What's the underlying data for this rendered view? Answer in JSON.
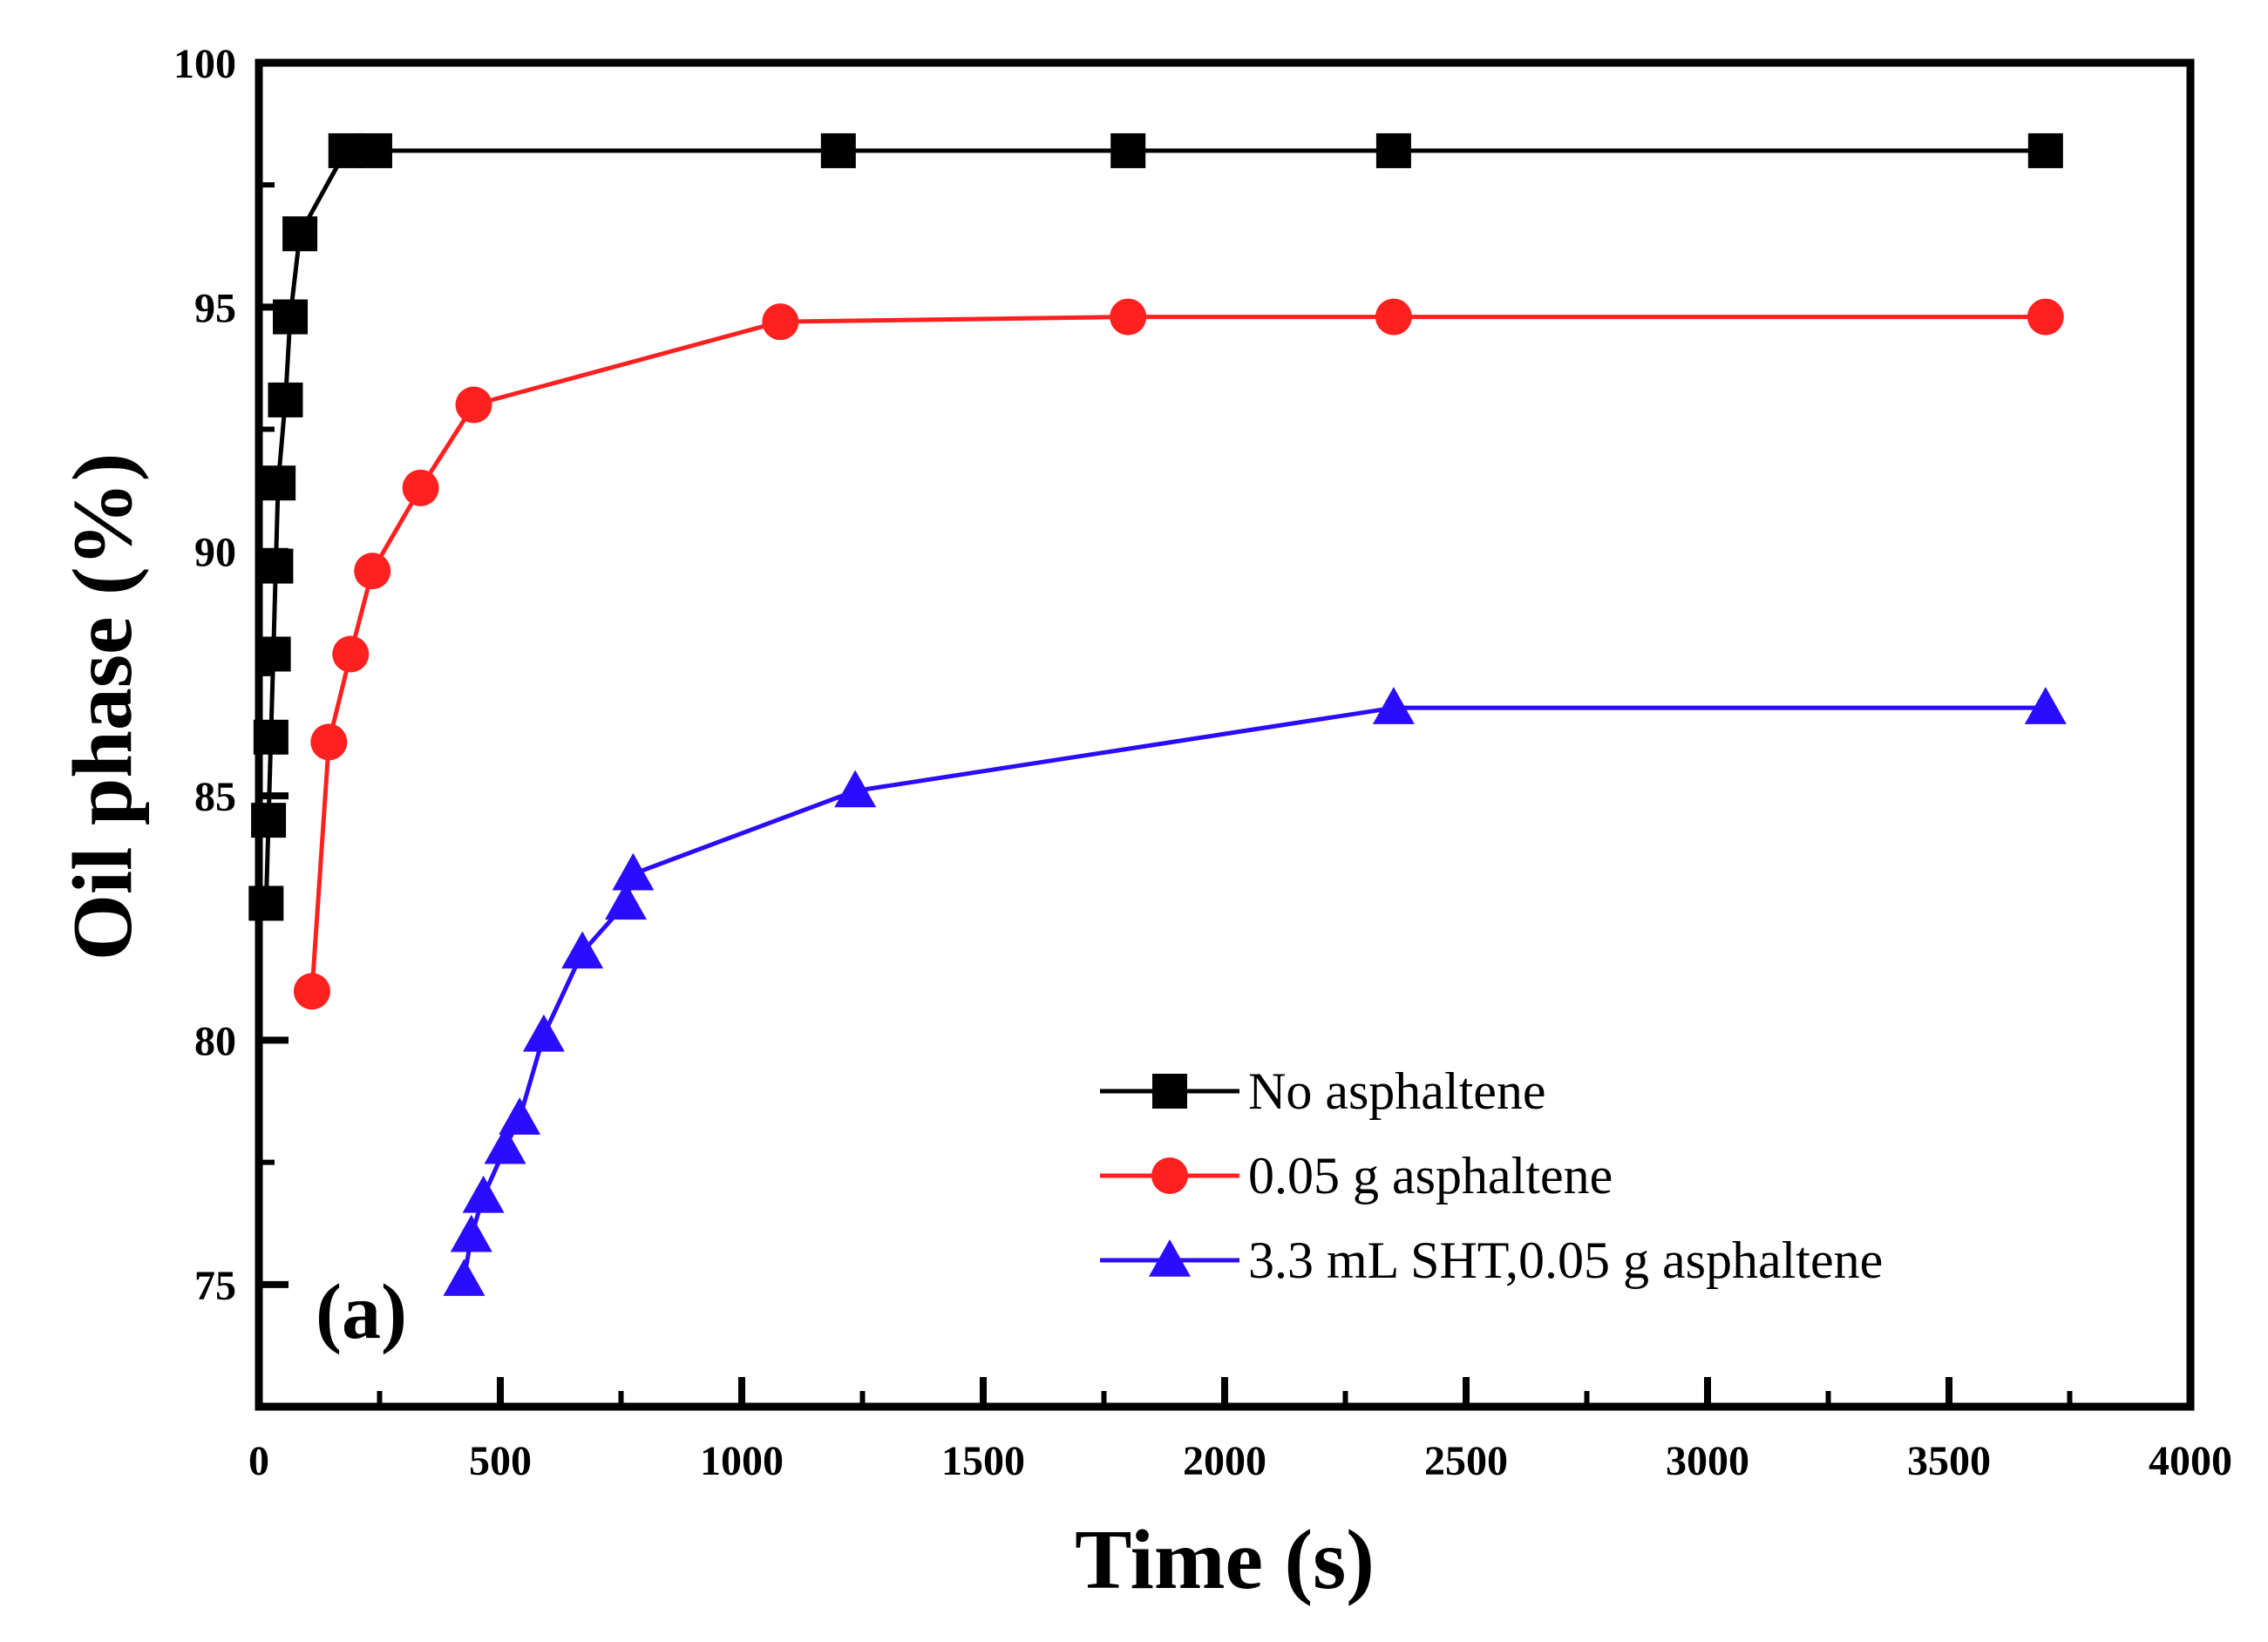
{
  "chart_data": {
    "type": "line",
    "panel_label": "(a)",
    "xlabel": "Time (s)",
    "ylabel": "Oil phase (%)",
    "xlim": [
      0,
      4000
    ],
    "ylim": [
      72.5,
      100
    ],
    "xticks": [
      0,
      500,
      1000,
      1500,
      2000,
      2500,
      3000,
      3500,
      4000
    ],
    "yticks": [
      75,
      80,
      85,
      90,
      95,
      100
    ],
    "grid": false,
    "legend_position": "bottom-right",
    "series": [
      {
        "name": "No asphaltene",
        "color": "#000000",
        "marker": "square",
        "x": [
          15,
          20,
          25,
          30,
          35,
          40,
          55,
          65,
          85,
          180,
          240,
          1200,
          1800,
          2350,
          3700
        ],
        "y": [
          82.8,
          84.5,
          86.2,
          87.9,
          89.7,
          91.4,
          93.1,
          94.8,
          96.5,
          98.2,
          98.2,
          98.2,
          98.2,
          98.2,
          98.2
        ]
      },
      {
        "name": "0.05 g asphaltene",
        "color": "#ff2020",
        "marker": "circle",
        "x": [
          110,
          145,
          190,
          235,
          335,
          445,
          1080,
          1800,
          2350,
          3700
        ],
        "y": [
          81.0,
          86.1,
          87.9,
          89.6,
          91.3,
          93.0,
          94.7,
          94.8,
          94.8,
          94.8
        ]
      },
      {
        "name": "3.3 mL SHT,0.05 g asphaltene",
        "color": "#2a0cff",
        "marker": "triangle",
        "x": [
          425,
          440,
          465,
          510,
          540,
          590,
          670,
          760,
          775,
          1235,
          2350,
          3700
        ],
        "y": [
          75.1,
          76.0,
          76.8,
          77.8,
          78.4,
          80.1,
          81.8,
          82.8,
          83.4,
          85.1,
          86.8,
          86.8
        ]
      }
    ]
  }
}
